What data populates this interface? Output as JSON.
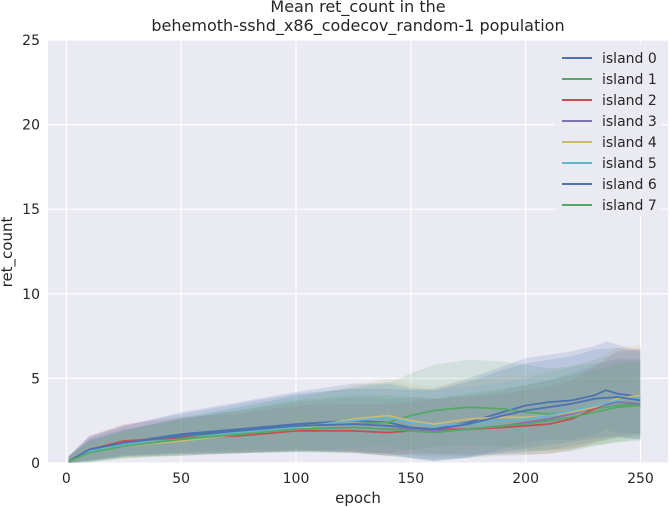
{
  "chart_data": {
    "type": "line",
    "title": [
      "Mean ret_count in the",
      "behemoth-sshd_x86_codecov_random-1 population"
    ],
    "xlabel": "epoch",
    "ylabel": "ret_count",
    "xlim": [
      -8,
      262
    ],
    "ylim": [
      0,
      25
    ],
    "xticks": [
      0,
      50,
      100,
      150,
      200,
      250
    ],
    "yticks": [
      0,
      5,
      10,
      15,
      20,
      25
    ],
    "grid": true,
    "legend_position": "top-right",
    "band": "shaded range around each mean line",
    "series": [
      {
        "name": "island 0",
        "color": "#4c72b0",
        "x": [
          1,
          10,
          25,
          50,
          75,
          100,
          125,
          140,
          150,
          160,
          175,
          190,
          200,
          210,
          220,
          230,
          235,
          240,
          245,
          250
        ],
        "mean": [
          0.1,
          0.7,
          1.2,
          1.7,
          2.0,
          2.3,
          2.5,
          2.4,
          2.1,
          2.0,
          2.4,
          3.0,
          3.4,
          3.6,
          3.7,
          4.0,
          4.3,
          4.1,
          4.0,
          3.9
        ],
        "spread": [
          0.3,
          0.8,
          1.0,
          1.3,
          1.6,
          1.9,
          2.2,
          2.3,
          2.3,
          2.4,
          2.6,
          2.7,
          2.8,
          2.8,
          2.9,
          2.9,
          2.9,
          2.9,
          2.8,
          2.8
        ]
      },
      {
        "name": "island 1",
        "color": "#55a868",
        "x": [
          1,
          10,
          25,
          50,
          75,
          100,
          125,
          140,
          150,
          160,
          175,
          190,
          200,
          210,
          220,
          230,
          240,
          250
        ],
        "mean": [
          0.1,
          0.6,
          1.0,
          1.5,
          1.8,
          2.2,
          2.3,
          2.4,
          2.8,
          3.1,
          3.3,
          3.2,
          3.0,
          2.9,
          3.0,
          3.2,
          3.4,
          3.5
        ],
        "spread": [
          0.3,
          0.7,
          0.9,
          1.2,
          1.5,
          1.8,
          2.1,
          2.3,
          2.5,
          2.7,
          2.8,
          2.8,
          2.8,
          2.7,
          2.7,
          2.7,
          2.7,
          2.6
        ]
      },
      {
        "name": "island 2",
        "color": "#c44e52",
        "x": [
          1,
          10,
          25,
          50,
          75,
          100,
          125,
          140,
          150,
          160,
          175,
          190,
          200,
          210,
          220,
          230,
          240,
          250
        ],
        "mean": [
          0.1,
          0.8,
          1.3,
          1.5,
          1.6,
          1.9,
          1.9,
          1.8,
          1.9,
          2.0,
          2.0,
          2.1,
          2.2,
          2.3,
          2.6,
          3.2,
          3.8,
          4.0
        ],
        "spread": [
          0.3,
          0.8,
          1.0,
          1.2,
          1.3,
          1.5,
          1.6,
          1.7,
          1.7,
          1.8,
          1.9,
          2.0,
          2.1,
          2.2,
          2.3,
          2.5,
          2.8,
          2.8
        ]
      },
      {
        "name": "island 3",
        "color": "#8172b2",
        "x": [
          1,
          10,
          25,
          50,
          75,
          100,
          125,
          140,
          150,
          160,
          175,
          190,
          200,
          210,
          220,
          230,
          240,
          250
        ],
        "mean": [
          0.1,
          0.7,
          1.1,
          1.4,
          1.7,
          2.0,
          2.1,
          2.0,
          2.0,
          1.9,
          2.0,
          2.2,
          2.4,
          2.6,
          2.9,
          3.3,
          3.6,
          3.5
        ],
        "spread": [
          0.3,
          0.7,
          0.9,
          1.2,
          1.4,
          1.6,
          1.8,
          1.8,
          1.9,
          1.9,
          2.0,
          2.1,
          2.2,
          2.3,
          2.4,
          2.5,
          2.6,
          2.6
        ]
      },
      {
        "name": "island 4",
        "color": "#ccb974",
        "x": [
          1,
          10,
          25,
          50,
          75,
          100,
          125,
          140,
          150,
          160,
          175,
          190,
          200,
          210,
          220,
          230,
          240,
          250
        ],
        "mean": [
          0.1,
          0.6,
          1.0,
          1.3,
          1.7,
          2.0,
          2.6,
          2.8,
          2.5,
          2.3,
          2.6,
          2.7,
          2.7,
          2.8,
          3.0,
          3.3,
          3.8,
          4.0
        ],
        "spread": [
          0.3,
          0.6,
          0.9,
          1.1,
          1.4,
          1.7,
          2.0,
          2.2,
          2.2,
          2.2,
          2.3,
          2.4,
          2.5,
          2.6,
          2.7,
          2.8,
          3.0,
          3.0
        ]
      },
      {
        "name": "island 5",
        "color": "#64b5cd",
        "x": [
          1,
          10,
          25,
          50,
          75,
          100,
          125,
          140,
          150,
          160,
          175,
          190,
          200,
          210,
          220,
          230,
          240,
          250
        ],
        "mean": [
          0.1,
          0.7,
          1.1,
          1.4,
          1.8,
          2.1,
          2.5,
          2.7,
          2.4,
          2.2,
          2.3,
          2.5,
          2.6,
          2.8,
          3.1,
          3.4,
          3.7,
          3.9
        ],
        "spread": [
          0.3,
          0.7,
          0.9,
          1.2,
          1.5,
          1.8,
          2.0,
          2.1,
          2.1,
          2.1,
          2.2,
          2.3,
          2.4,
          2.5,
          2.6,
          2.7,
          2.8,
          2.8
        ]
      },
      {
        "name": "island 6",
        "color": "#4c72b0",
        "x": [
          1,
          10,
          25,
          50,
          75,
          100,
          125,
          140,
          150,
          160,
          175,
          190,
          200,
          210,
          220,
          230,
          240,
          250
        ],
        "mean": [
          0.1,
          0.8,
          1.2,
          1.6,
          1.9,
          2.2,
          2.3,
          2.2,
          2.1,
          2.0,
          2.3,
          2.8,
          3.1,
          3.3,
          3.5,
          3.8,
          3.9,
          3.7
        ],
        "spread": [
          0.3,
          0.8,
          1.0,
          1.3,
          1.6,
          1.9,
          2.1,
          2.2,
          2.2,
          2.3,
          2.5,
          2.7,
          2.8,
          2.8,
          2.8,
          2.9,
          2.9,
          2.9
        ]
      },
      {
        "name": "island 7",
        "color": "#55a868",
        "x": [
          1,
          10,
          25,
          50,
          75,
          100,
          125,
          140,
          150,
          160,
          175,
          190,
          200,
          210,
          220,
          230,
          240,
          250
        ],
        "mean": [
          0.1,
          0.6,
          1.0,
          1.4,
          1.7,
          2.0,
          2.1,
          2.0,
          1.9,
          1.8,
          2.0,
          2.2,
          2.3,
          2.5,
          2.7,
          3.0,
          3.3,
          3.4
        ],
        "spread": [
          0.3,
          0.7,
          0.9,
          1.2,
          1.4,
          1.7,
          1.9,
          2.0,
          2.0,
          2.0,
          2.1,
          2.2,
          2.3,
          2.4,
          2.5,
          2.5,
          2.6,
          2.6
        ]
      }
    ]
  }
}
